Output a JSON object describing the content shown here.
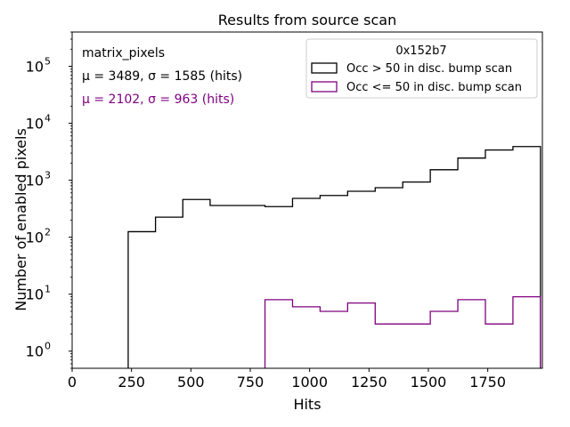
{
  "chart_data": {
    "type": "histogram",
    "title": "Results from source scan",
    "xlabel": "Hits",
    "ylabel": "Number of enabled pixels",
    "yscale": "log",
    "xlim": [
      0,
      1980
    ],
    "ylim": [
      0.5,
      400000
    ],
    "xticks": [
      0,
      250,
      500,
      750,
      1000,
      1250,
      1500,
      1750,
      2000
    ],
    "xtick_labels": [
      "0",
      "250",
      "500",
      "750",
      "1000",
      "1250",
      "1500",
      "1750",
      "2000"
    ],
    "yticks": [
      1,
      10,
      100,
      1000,
      10000,
      100000
    ],
    "ytick_base": "10",
    "ytick_exponents": [
      "0",
      "1",
      "2",
      "3",
      "4",
      "5"
    ],
    "grid": false,
    "annotations": [
      {
        "text": "matrix_pixels",
        "color": "#000000"
      },
      {
        "text": "μ = 3489, σ = 1585 (hits)",
        "color": "#000000"
      },
      {
        "text": "μ = 2102, σ = 963 (hits)",
        "color": "#800080"
      }
    ],
    "legend": {
      "title": "0x152b7",
      "placement": "upper right"
    },
    "series": [
      {
        "name": "Occ > 50 in disc. bump scan",
        "color": "#000000",
        "bin_edges": [
          236,
          351,
          466,
          581,
          812,
          928,
          1044,
          1160,
          1276,
          1392,
          1508,
          1624,
          1740,
          1856,
          1972
        ],
        "counts": [
          125,
          225,
          460,
          360,
          345,
          480,
          540,
          640,
          740,
          930,
          1530,
          2450,
          3400,
          3900
        ]
      },
      {
        "name": "Occ <= 50 in disc. bump scan",
        "color": "#800080",
        "bin_edges": [
          812,
          928,
          1044,
          1160,
          1276,
          1508,
          1624,
          1740,
          1856,
          1972
        ],
        "counts": [
          8,
          6,
          5,
          7,
          3,
          5,
          8,
          3,
          9
        ]
      }
    ]
  }
}
